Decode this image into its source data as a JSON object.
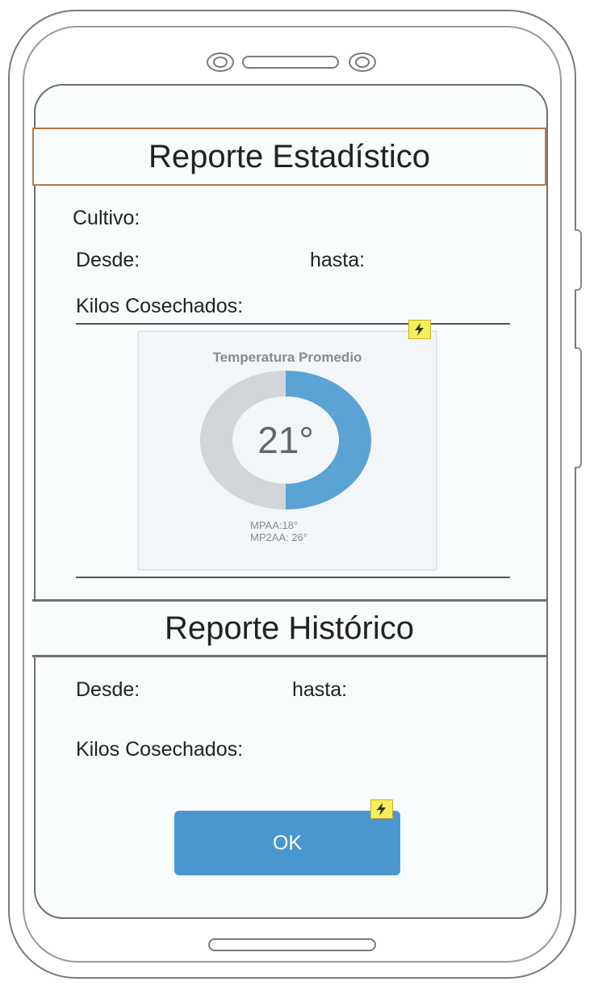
{
  "stat_report": {
    "title": "Reporte Estadístico",
    "cultivo_label": "Cultivo:",
    "desde_label": "Desde:",
    "hasta_label": "hasta:",
    "kilos_label": "Kilos Cosechados:"
  },
  "gauge": {
    "title": "Temperatura Promedio",
    "value_text": "21°",
    "value_fraction": 0.5,
    "sub1": "MPAA:18°",
    "sub2": "MP2AA: 26°",
    "fill_color": "#5aa3d4",
    "track_color": "#d3d6d9"
  },
  "hist_report": {
    "title": "Reporte Histórico",
    "desde_label": "Desde:",
    "hasta_label": "hasta:",
    "kilos_label": "Kilos Cosechados:"
  },
  "ok_button": {
    "label": "OK",
    "color": "#4a97d0"
  },
  "icons": {
    "flash": "lightning-bolt-icon"
  }
}
